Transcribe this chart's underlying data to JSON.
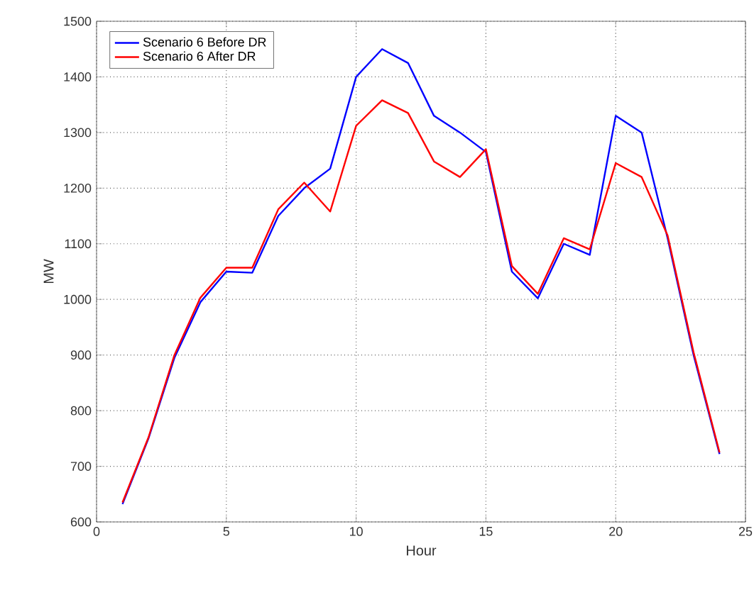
{
  "chart_data": {
    "type": "line",
    "xlabel": "Hour",
    "ylabel": "MW",
    "x": [
      1,
      2,
      3,
      4,
      5,
      6,
      7,
      8,
      9,
      10,
      11,
      12,
      13,
      14,
      15,
      16,
      17,
      18,
      19,
      20,
      21,
      22,
      23,
      24
    ],
    "series": [
      {
        "name": "Scenario 6 Before DR",
        "color": "#0000ff",
        "values": [
          632,
          750,
          895,
          995,
          1050,
          1048,
          1150,
          1200,
          1235,
          1400,
          1450,
          1425,
          1330,
          1300,
          1265,
          1050,
          1002,
          1100,
          1080,
          1330,
          1300,
          1110,
          900,
          722
        ]
      },
      {
        "name": "Scenario 6 After DR",
        "color": "#ff0000",
        "values": [
          635,
          752,
          900,
          1003,
          1057,
          1057,
          1162,
          1210,
          1158,
          1312,
          1358,
          1335,
          1248,
          1220,
          1270,
          1060,
          1010,
          1110,
          1090,
          1245,
          1220,
          1115,
          905,
          725
        ]
      }
    ],
    "xlim": [
      0,
      25
    ],
    "xticks": [
      0,
      5,
      10,
      15,
      20,
      25
    ],
    "ylim": [
      600,
      1500
    ],
    "yticks": [
      600,
      700,
      800,
      900,
      1000,
      1100,
      1200,
      1300,
      1400,
      1500
    ],
    "grid": true,
    "legend": "top left",
    "marker": "none",
    "line_style": "solid"
  }
}
